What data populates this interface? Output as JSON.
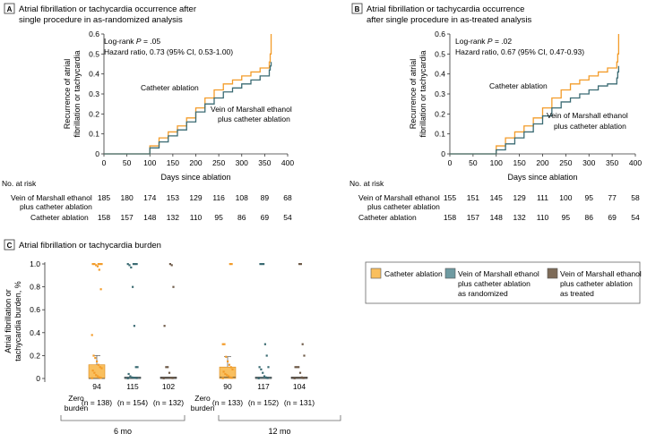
{
  "colors": {
    "catheter": "#f39c2a",
    "catheter_fill": "#f9bf5e",
    "vom_rand": "#3b6b73",
    "vom_rand_fill": "#6e9aa1",
    "vom_treat": "#6e5a48",
    "vom_treat_fill": "#7d6b58",
    "axis": "#333333"
  },
  "panelA": {
    "letter": "A",
    "title_line1": "Atrial fibrillation or tachycardia occurrence after",
    "title_line2": "single procedure in as-randomized analysis",
    "logrank_prefix": "Log-rank ",
    "logrank_p": "P",
    "logrank_value": " = .05",
    "hazard": "Hazard ratio, 0.73 (95% CI, 0.53-1.00)",
    "label_catheter": "Catheter ablation",
    "label_vom_line1": "Vein of Marshall ethanol",
    "label_vom_line2": "plus catheter ablation",
    "risk_title": "No. at risk",
    "risk_row1_line1": "Vein of Marshall ethanol",
    "risk_row1_line2": "plus catheter ablation",
    "risk_row2": "Catheter ablation"
  },
  "panelB": {
    "letter": "B",
    "title_line1": "Atrial fibrillation or tachycardia occurrence",
    "title_line2": "after single procedure in as-treated analysis",
    "logrank_prefix": "Log-rank ",
    "logrank_p": "P",
    "logrank_value": " = .02",
    "hazard": "Hazard ratio, 0.67 (95% CI, 0.47-0.93)",
    "label_catheter": "Catheter ablation",
    "label_vom_line1": "Vein of Marshall ethanol",
    "label_vom_line2": "plus catheter ablation",
    "risk_title": "No. at risk",
    "risk_row1_line1": "Vein of Marshall ethanol",
    "risk_row1_line2": "plus catheter ablation",
    "risk_row2": "Catheter ablation"
  },
  "panelC": {
    "letter": "C",
    "title": "Atrial fibrillation or tachycardia burden",
    "legend": [
      {
        "line1": "Catheter ablation",
        "line2": "",
        "line3": ""
      },
      {
        "line1": "Vein of Marshall ethanol",
        "line2": "plus catheter ablation",
        "line3": "as randomized"
      },
      {
        "line1": "Vein of Marshall ethanol",
        "line2": "plus catheter ablation",
        "line3": "as treated"
      }
    ],
    "zero_burden_line1": "Zero",
    "zero_burden_line2": "burden",
    "group_6mo": "6 mo",
    "group_12mo": "12 mo"
  },
  "chart_data": [
    {
      "type": "line",
      "id": "A",
      "xlabel": "Days since ablation",
      "ylabel_line1": "Recurrence of atrial",
      "ylabel_line2": "fibrillation or tachycardia",
      "xlim": [
        0,
        400
      ],
      "ylim": [
        0,
        0.6
      ],
      "xticks": [
        "0",
        "50",
        "100",
        "150",
        "200",
        "250",
        "300",
        "350",
        "400"
      ],
      "yticks": [
        "0",
        "0.1",
        "0.2",
        "0.3",
        "0.4",
        "0.5",
        "0.6"
      ],
      "series": [
        {
          "name": "Catheter ablation",
          "x": [
            0,
            90,
            100,
            120,
            140,
            160,
            180,
            200,
            220,
            240,
            260,
            280,
            300,
            320,
            340,
            360,
            362,
            364
          ],
          "y": [
            0,
            0,
            0.04,
            0.08,
            0.11,
            0.14,
            0.18,
            0.23,
            0.28,
            0.32,
            0.35,
            0.37,
            0.39,
            0.41,
            0.43,
            0.46,
            0.5,
            0.6
          ]
        },
        {
          "name": "Vein of Marshall ethanol plus catheter ablation",
          "x": [
            0,
            92,
            100,
            120,
            140,
            160,
            180,
            200,
            220,
            240,
            260,
            280,
            300,
            320,
            340,
            360,
            362,
            364
          ],
          "y": [
            0,
            0,
            0.03,
            0.06,
            0.09,
            0.12,
            0.16,
            0.21,
            0.25,
            0.28,
            0.31,
            0.33,
            0.35,
            0.37,
            0.39,
            0.42,
            0.44,
            0.46
          ]
        }
      ],
      "risk": {
        "x": [
          "0",
          "50",
          "100",
          "150",
          "200",
          "250",
          "300",
          "350",
          "400"
        ],
        "vom": [
          "185",
          "180",
          "174",
          "153",
          "129",
          "116",
          "108",
          "89",
          "68"
        ],
        "catheter": [
          "158",
          "157",
          "148",
          "132",
          "110",
          "95",
          "86",
          "69",
          "54"
        ]
      }
    },
    {
      "type": "line",
      "id": "B",
      "xlabel": "Days since ablation",
      "ylabel_line1": "Recurrence of atrial",
      "ylabel_line2": "fibrillation or tachycardia",
      "xlim": [
        0,
        400
      ],
      "ylim": [
        0,
        0.6
      ],
      "xticks": [
        "0",
        "50",
        "100",
        "150",
        "200",
        "250",
        "300",
        "350",
        "400"
      ],
      "yticks": [
        "0",
        "0.1",
        "0.2",
        "0.3",
        "0.4",
        "0.5",
        "0.6"
      ],
      "series": [
        {
          "name": "Catheter ablation",
          "x": [
            0,
            90,
            100,
            120,
            140,
            160,
            180,
            200,
            220,
            240,
            260,
            280,
            300,
            320,
            340,
            360,
            362,
            364
          ],
          "y": [
            0,
            0,
            0.04,
            0.08,
            0.11,
            0.14,
            0.18,
            0.23,
            0.28,
            0.32,
            0.35,
            0.37,
            0.39,
            0.41,
            0.43,
            0.46,
            0.5,
            0.6
          ]
        },
        {
          "name": "Vein of Marshall ethanol plus catheter ablation",
          "x": [
            0,
            94,
            100,
            120,
            140,
            160,
            180,
            200,
            220,
            240,
            260,
            280,
            300,
            320,
            340,
            360,
            362,
            364
          ],
          "y": [
            0,
            0,
            0.02,
            0.05,
            0.08,
            0.11,
            0.15,
            0.19,
            0.23,
            0.26,
            0.28,
            0.3,
            0.32,
            0.34,
            0.35,
            0.38,
            0.41,
            0.44
          ]
        }
      ],
      "risk": {
        "x": [
          "0",
          "50",
          "100",
          "150",
          "200",
          "250",
          "300",
          "350",
          "400"
        ],
        "vom": [
          "155",
          "151",
          "145",
          "129",
          "111",
          "100",
          "95",
          "77",
          "58"
        ],
        "catheter": [
          "158",
          "157",
          "148",
          "132",
          "110",
          "95",
          "86",
          "69",
          "54"
        ]
      }
    },
    {
      "type": "scatter",
      "id": "C",
      "ylabel_line1": "Atrial fibrillation or",
      "ylabel_line2": "tachycardia burden, %",
      "ylim": [
        0,
        1.0
      ],
      "yticks": [
        "0",
        "0.2",
        "0.4",
        "0.6",
        "0.8",
        "1.0"
      ],
      "groups": [
        {
          "period": "6 mo",
          "arm": "catheter",
          "zero_count": "94",
          "n_label": "(n = 138)",
          "q1": 0,
          "median": 0,
          "q3": 0.12,
          "whisker": 0.2,
          "points": [
            0.003,
            0.006,
            0.01,
            0.02,
            0.03,
            0.05,
            0.07,
            0.09,
            0.1,
            0.12,
            0.15,
            0.18,
            0.2,
            0.38,
            0.78,
            0.95,
            0.98,
            0.99,
            1.0,
            1.0,
            1.0,
            1.0,
            1.0
          ]
        },
        {
          "period": "6 mo",
          "arm": "vom_rand",
          "zero_count": "115",
          "n_label": "(n = 154)",
          "q1": 0,
          "median": 0,
          "q3": 0.01,
          "whisker": 0.01,
          "points": [
            0.002,
            0.004,
            0.006,
            0.008,
            0.01,
            0.02,
            0.04,
            0.1,
            0.1,
            0.46,
            0.8,
            0.97,
            0.99,
            1.0,
            1.0,
            1.0,
            1.0
          ]
        },
        {
          "period": "6 mo",
          "arm": "vom_treat",
          "zero_count": "102",
          "n_label": "(n = 132)",
          "q1": 0,
          "median": 0,
          "q3": 0.005,
          "whisker": 0.005,
          "points": [
            0.002,
            0.004,
            0.006,
            0.05,
            0.1,
            0.1,
            0.46,
            0.8,
            0.99,
            1.0
          ]
        },
        {
          "period": "12 mo",
          "arm": "catheter",
          "zero_count": "90",
          "n_label": "(n = 133)",
          "q1": 0,
          "median": 0.01,
          "q3": 0.1,
          "whisker": 0.19,
          "points": [
            0.003,
            0.006,
            0.01,
            0.02,
            0.03,
            0.04,
            0.06,
            0.08,
            0.1,
            0.12,
            0.15,
            0.19,
            0.3,
            0.3,
            1.0,
            1.0
          ]
        },
        {
          "period": "12 mo",
          "arm": "vom_rand",
          "zero_count": "117",
          "n_label": "(n = 152)",
          "q1": 0,
          "median": 0,
          "q3": 0.005,
          "whisker": 0.005,
          "points": [
            0.002,
            0.004,
            0.01,
            0.02,
            0.05,
            0.08,
            0.1,
            0.1,
            0.2,
            0.3,
            1.0,
            1.0,
            1.0
          ]
        },
        {
          "period": "12 mo",
          "arm": "vom_treat",
          "zero_count": "104",
          "n_label": "(n = 131)",
          "q1": 0,
          "median": 0,
          "q3": 0.005,
          "whisker": 0.005,
          "points": [
            0.002,
            0.004,
            0.01,
            0.05,
            0.1,
            0.1,
            0.1,
            0.2,
            0.3,
            1.0,
            1.0
          ]
        }
      ]
    }
  ]
}
